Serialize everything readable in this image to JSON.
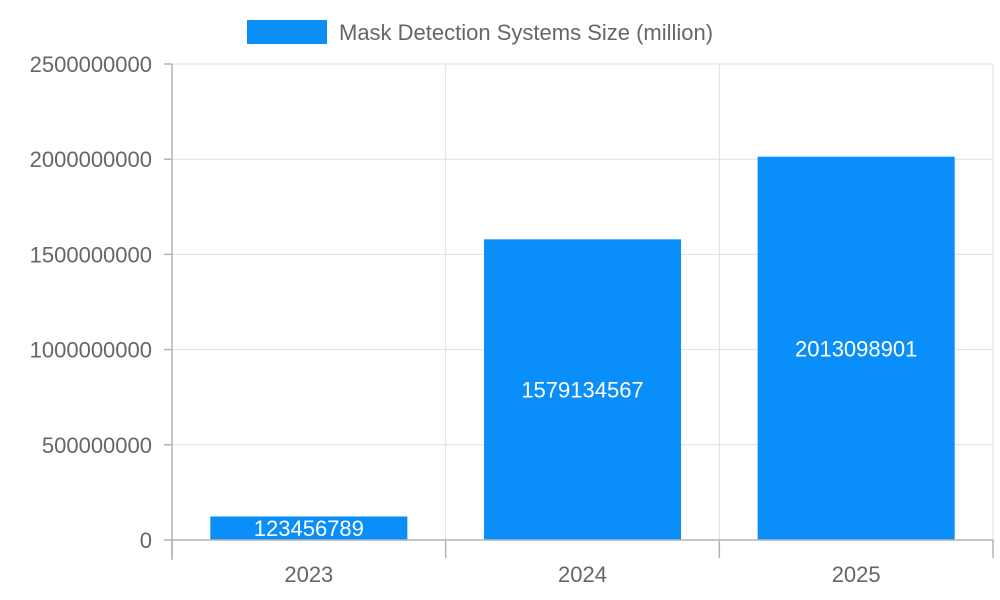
{
  "chart_data": {
    "type": "bar",
    "categories": [
      "2023",
      "2024",
      "2025"
    ],
    "series": [
      {
        "name": "Mask Detection Systems Size (million)",
        "values": [
          123456789,
          1579134567,
          2013098901
        ],
        "color": "#0a8ef9"
      }
    ],
    "ylim": [
      0,
      2500000000
    ],
    "yticks": [
      0,
      500000000,
      1000000000,
      1500000000,
      2000000000,
      2500000000
    ],
    "ytick_labels": [
      "0",
      "500000000",
      "1000000000",
      "1500000000",
      "2000000000",
      "2500000000"
    ],
    "data_labels": [
      "123456789",
      "1579134567",
      "2013098901"
    ],
    "grid": true,
    "legend_position": "top-center",
    "title": "",
    "xlabel": "",
    "ylabel": ""
  }
}
